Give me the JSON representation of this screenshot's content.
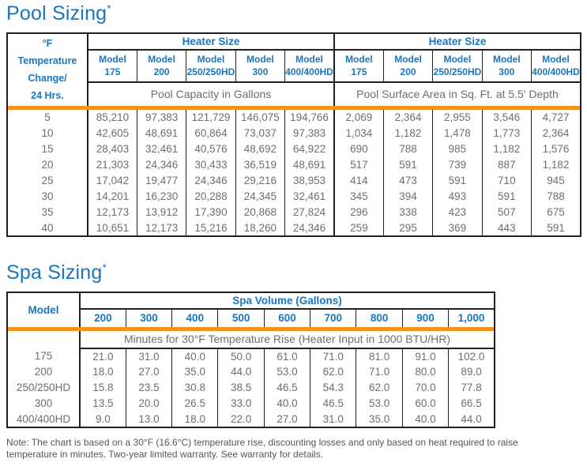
{
  "colors": {
    "accent_blue": "#1C75BC",
    "accent_orange": "#F6921E",
    "data_gray": "#6D6E71",
    "border_black": "#231F20",
    "note_gray": "#55565A"
  },
  "pool": {
    "title": "Pool Sizing",
    "title_asterisk": "*",
    "corner_lines": [
      "°F",
      "Temperature",
      "Change/",
      "24 Hrs."
    ],
    "group_headers": [
      "Heater Size",
      "Heater Size"
    ],
    "model_word": "Model",
    "models": [
      "175",
      "200",
      "250/250HD",
      "300",
      "400/400HD"
    ],
    "subheaders": [
      "Pool Capacity in Gallons",
      "Pool Surface Area in Sq. Ft. at 5.5' Depth"
    ],
    "rows": [
      {
        "temp": "5",
        "capacity": [
          "85,210",
          "97,383",
          "121,729",
          "146,075",
          "194,766"
        ],
        "surface": [
          "2,069",
          "2,364",
          "2,955",
          "3,546",
          "4,727"
        ]
      },
      {
        "temp": "10",
        "capacity": [
          "42,605",
          "48,691",
          "60,864",
          "73,037",
          "97,383"
        ],
        "surface": [
          "1,034",
          "1,182",
          "1,478",
          "1,773",
          "2,364"
        ]
      },
      {
        "temp": "15",
        "capacity": [
          "28,403",
          "32,461",
          "40,576",
          "48,692",
          "64,922"
        ],
        "surface": [
          "690",
          "788",
          "985",
          "1,182",
          "1,576"
        ]
      },
      {
        "temp": "20",
        "capacity": [
          "21,303",
          "24,346",
          "30,433",
          "36,519",
          "48,691"
        ],
        "surface": [
          "517",
          "591",
          "739",
          "887",
          "1,182"
        ]
      },
      {
        "temp": "25",
        "capacity": [
          "17,042",
          "19,477",
          "24,346",
          "29,216",
          "38,953"
        ],
        "surface": [
          "414",
          "473",
          "591",
          "710",
          "945"
        ]
      },
      {
        "temp": "30",
        "capacity": [
          "14,201",
          "16,230",
          "20,288",
          "24,345",
          "32,461"
        ],
        "surface": [
          "345",
          "394",
          "493",
          "591",
          "788"
        ]
      },
      {
        "temp": "35",
        "capacity": [
          "12,173",
          "13,912",
          "17,390",
          "20,868",
          "27,824"
        ],
        "surface": [
          "296",
          "338",
          "423",
          "507",
          "675"
        ]
      },
      {
        "temp": "40",
        "capacity": [
          "10,651",
          "12,173",
          "15,216",
          "18,260",
          "24,346"
        ],
        "surface": [
          "259",
          "295",
          "369",
          "443",
          "591"
        ]
      }
    ]
  },
  "spa": {
    "title": "Spa Sizing",
    "title_asterisk": "*",
    "model_header": "Model",
    "volume_group_header": "Spa Volume (Gallons)",
    "volumes": [
      "200",
      "300",
      "400",
      "500",
      "600",
      "700",
      "800",
      "900",
      "1,000"
    ],
    "subheader": "Minutes for 30°F Temperature Rise (Heater Input in 1000 BTU/HR)",
    "rows": [
      {
        "model": "175",
        "minutes": [
          "21.0",
          "31.0",
          "40.0",
          "50.0",
          "61.0",
          "71.0",
          "81.0",
          "91.0",
          "102.0"
        ]
      },
      {
        "model": "200",
        "minutes": [
          "18.0",
          "27.0",
          "35.0",
          "44.0",
          "53.0",
          "62.0",
          "71.0",
          "80.0",
          "89.0"
        ]
      },
      {
        "model": "250/250HD",
        "minutes": [
          "15.8",
          "23.5",
          "30.8",
          "38.5",
          "46.5",
          "54.3",
          "62.0",
          "70.0",
          "77.8"
        ]
      },
      {
        "model": "300",
        "minutes": [
          "13.5",
          "20.0",
          "26.5",
          "33.0",
          "40.0",
          "46.5",
          "53.0",
          "60.0",
          "66.5"
        ]
      },
      {
        "model": "400/400HD",
        "minutes": [
          "9.0",
          "13.0",
          "18.0",
          "22.0",
          "27.0",
          "31.0",
          "35.0",
          "40.0",
          "44.0"
        ]
      }
    ]
  },
  "note": {
    "text": "Note: The chart is based on a 30°F (16.6°C) temperature rise, discounting losses and only based on heat required to raise temperature in minutes. Two-year limited warranty. See warranty for details."
  }
}
